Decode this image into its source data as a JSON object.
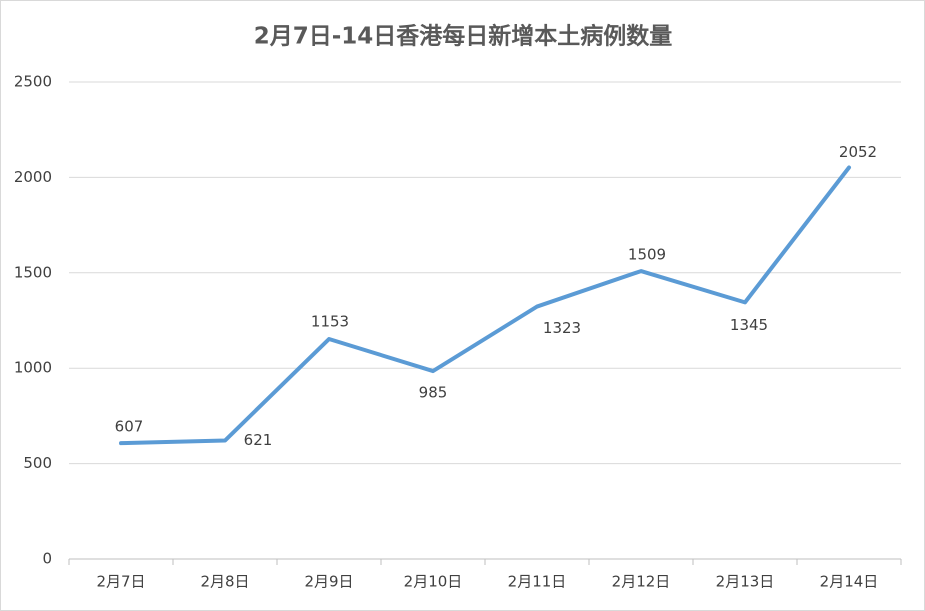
{
  "chart_data": {
    "type": "line",
    "title": "2月7日-14日香港每日新增本土病例数量",
    "categories": [
      "2月7日",
      "2月8日",
      "2月9日",
      "2月10日",
      "2月11日",
      "2月12日",
      "2月13日",
      "2月14日"
    ],
    "values": [
      607,
      621,
      1153,
      985,
      1323,
      1509,
      1345,
      2052
    ],
    "color": "#5b9bd5",
    "ylim": [
      0,
      2500
    ],
    "yticks": [
      0,
      500,
      1000,
      1500,
      2000,
      2500
    ],
    "grid": true
  }
}
